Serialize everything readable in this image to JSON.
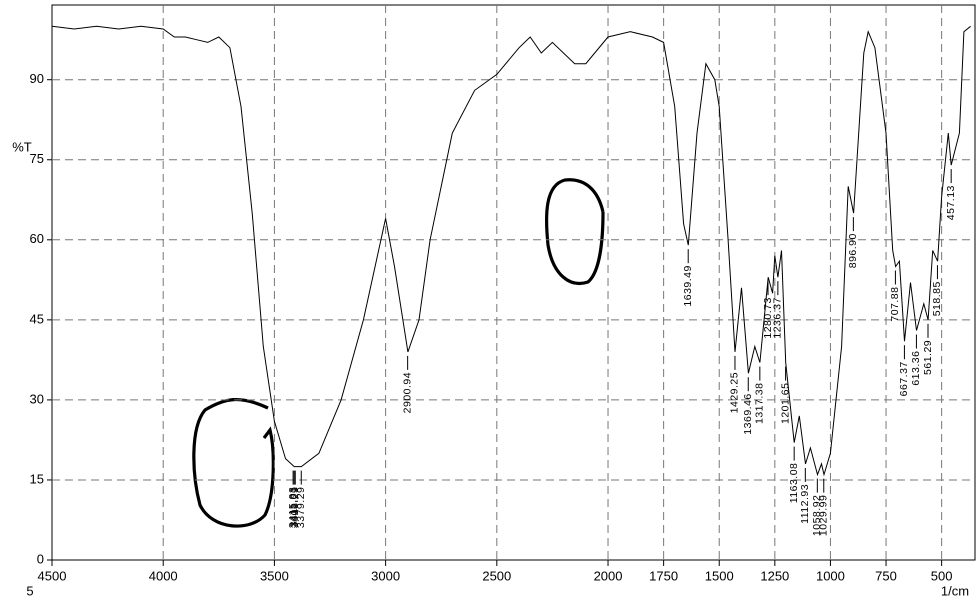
{
  "chart_data": {
    "type": "line",
    "ylabel": "%T",
    "xlabel": "1/cm",
    "corner_note": "5",
    "xlim": [
      4500,
      350
    ],
    "ylim": [
      0,
      104
    ],
    "xticks": [
      4500,
      4000,
      3500,
      3000,
      2500,
      2000,
      1750,
      1500,
      1250,
      1000,
      750,
      500
    ],
    "yticks": [
      0,
      15,
      30,
      45,
      60,
      75,
      90
    ],
    "grid": true,
    "color": "#000000",
    "x": [
      4500,
      4400,
      4300,
      4200,
      4100,
      4000,
      3950,
      3900,
      3850,
      3800,
      3750,
      3700,
      3650,
      3600,
      3550,
      3500,
      3450,
      3411,
      3379,
      3300,
      3200,
      3100,
      3000,
      2960,
      2900,
      2850,
      2800,
      2700,
      2600,
      2500,
      2400,
      2350,
      2300,
      2250,
      2150,
      2100,
      2000,
      1900,
      1800,
      1750,
      1700,
      1660,
      1639,
      1600,
      1560,
      1520,
      1500,
      1460,
      1429,
      1400,
      1369,
      1340,
      1317,
      1280,
      1260,
      1250,
      1236,
      1220,
      1201,
      1163,
      1140,
      1112,
      1090,
      1058,
      1040,
      1029,
      1000,
      950,
      920,
      896,
      850,
      830,
      800,
      750,
      720,
      707,
      690,
      667,
      640,
      613,
      580,
      561,
      540,
      518,
      500,
      470,
      457,
      420,
      400,
      370
    ],
    "values": [
      100,
      99.5,
      100,
      99.5,
      100,
      99.5,
      98,
      98,
      97.5,
      97,
      98,
      96,
      85,
      65,
      40,
      26,
      19,
      17.5,
      17.5,
      20,
      30,
      45,
      64,
      55,
      39,
      45,
      60,
      80,
      88,
      91,
      96,
      98,
      95,
      97,
      93,
      93,
      98,
      99,
      98,
      97,
      85,
      63,
      59,
      80,
      93,
      90,
      85,
      60,
      39,
      51,
      35,
      40,
      37,
      53,
      50,
      57,
      53,
      58,
      37,
      22,
      27,
      18,
      21,
      16,
      18,
      16,
      20,
      40,
      70,
      65,
      95,
      99,
      96,
      80,
      58,
      55,
      56,
      41,
      52,
      43,
      48,
      45,
      58,
      56,
      68,
      80,
      74,
      80,
      99,
      100
    ],
    "peaks": [
      {
        "x": 3411.01,
        "y": 17.5,
        "label": "3411.01"
      },
      {
        "x": 3415.93,
        "y": 17.5,
        "label": "3415.93"
      },
      {
        "x": 3406.29,
        "y": 17.5,
        "label": "3406.29"
      },
      {
        "x": 3379.29,
        "y": 17.5,
        "label": "3379.29"
      },
      {
        "x": 2900.94,
        "y": 39,
        "label": "2900.94"
      },
      {
        "x": 1639.49,
        "y": 59,
        "label": "1639.49"
      },
      {
        "x": 1429.25,
        "y": 39,
        "label": "1429.25"
      },
      {
        "x": 1369.46,
        "y": 35,
        "label": "1369.46"
      },
      {
        "x": 1317.38,
        "y": 37,
        "label": "1317.38"
      },
      {
        "x": 1280.73,
        "y": 53,
        "label": "1280.73"
      },
      {
        "x": 1236.37,
        "y": 53,
        "label": "1236.37"
      },
      {
        "x": 1201.65,
        "y": 37,
        "label": "1201.65"
      },
      {
        "x": 1163.08,
        "y": 22,
        "label": "1163.08"
      },
      {
        "x": 1112.93,
        "y": 18,
        "label": "1112.93"
      },
      {
        "x": 1058.92,
        "y": 16,
        "label": "1058.92"
      },
      {
        "x": 1029.99,
        "y": 16,
        "label": "1029.99"
      },
      {
        "x": 896.9,
        "y": 65,
        "label": "896.90"
      },
      {
        "x": 707.88,
        "y": 55,
        "label": "707.88"
      },
      {
        "x": 667.37,
        "y": 41,
        "label": "667.37"
      },
      {
        "x": 613.36,
        "y": 43,
        "label": "613.36"
      },
      {
        "x": 561.29,
        "y": 45,
        "label": "561.29"
      },
      {
        "x": 518.85,
        "y": 56,
        "label": "518.85"
      },
      {
        "x": 457.13,
        "y": 74,
        "label": "457.13"
      }
    ]
  }
}
